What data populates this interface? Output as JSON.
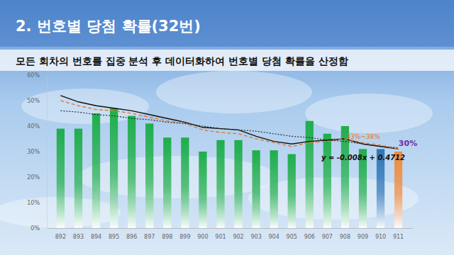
{
  "chart_data": {
    "type": "bar",
    "title": "2.  번호별 당첨 확률(32번)",
    "subtitle": "모든 회차의 번호를 집중 분석 후 데이터화하여 번호별 당첨 확률을 산정함",
    "categories": [
      "892",
      "893",
      "894",
      "895",
      "896",
      "897",
      "898",
      "899",
      "900",
      "901",
      "902",
      "903",
      "904",
      "905",
      "906",
      "907",
      "908",
      "909",
      "910",
      "911"
    ],
    "series": [
      {
        "type": "bar",
        "values": [
          39,
          39,
          45,
          47,
          44,
          41,
          35.5,
          35.5,
          30,
          34.5,
          34.5,
          30.5,
          30.5,
          29,
          42,
          37,
          40,
          31,
          31,
          30
        ],
        "colors": [
          "#1fae4b",
          "#1fae4b",
          "#1fae4b",
          "#1fae4b",
          "#1fae4b",
          "#1fae4b",
          "#1fae4b",
          "#1fae4b",
          "#1fae4b",
          "#1fae4b",
          "#1fae4b",
          "#1fae4b",
          "#1fae4b",
          "#1fae4b",
          "#1fae4b",
          "#1fae4b",
          "#1fae4b",
          "#1fae4b",
          "#2e75b6",
          "#f08a3c"
        ]
      },
      {
        "type": "line",
        "color": "#111111",
        "line_style": "solid",
        "values": [
          52,
          49.5,
          48,
          47,
          46,
          44.5,
          43,
          41.5,
          39.5,
          39,
          38.5,
          36,
          34,
          33,
          34,
          34.5,
          35,
          33,
          32,
          31
        ]
      },
      {
        "type": "line",
        "color": "#e8792a",
        "line_style": "dashed",
        "values": [
          50,
          48,
          46.5,
          46,
          45,
          43.5,
          42,
          41,
          38.5,
          37.5,
          37,
          35,
          33.5,
          32,
          33.5,
          34,
          35,
          33.5,
          32.5,
          31
        ]
      },
      {
        "type": "line",
        "color": "#222222",
        "line_style": "dotted",
        "values": [
          46,
          45.5,
          44.5,
          44,
          43,
          42.5,
          41.5,
          41,
          40,
          39,
          38.5,
          38,
          37,
          36,
          35.5,
          34.5,
          34,
          33,
          32,
          31.5
        ]
      }
    ],
    "annotations": [
      {
        "text": "33%~38%",
        "color": "#e8792a"
      },
      {
        "text": "30%",
        "color": "#7030a0"
      },
      {
        "text": "y = -0.008x + 0.4712",
        "color": "#111111"
      }
    ],
    "ylim": [
      0,
      60
    ],
    "yticks": [
      {
        "value": 0,
        "label": "0%"
      },
      {
        "value": 10,
        "label": "10%"
      },
      {
        "value": 20,
        "label": "20%"
      },
      {
        "value": 30,
        "label": "30%"
      },
      {
        "value": 40,
        "label": "40%"
      },
      {
        "value": 50,
        "label": "50%"
      },
      {
        "value": 60,
        "label": "60%"
      }
    ],
    "grid": false
  }
}
